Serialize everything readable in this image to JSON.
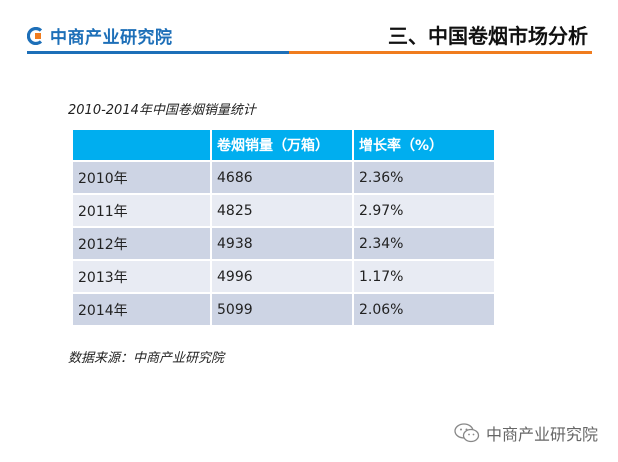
{
  "header": {
    "logo_text": "中商产业研究院",
    "section_title": "三、中国卷烟市场分析"
  },
  "caption": "2010-2014年中国卷烟销量统计",
  "table": {
    "headers": [
      "",
      "卷烟销量（万箱）",
      "增长率（%）"
    ],
    "rows": [
      {
        "year": "2010年",
        "sales": "4686",
        "growth": "2.36%"
      },
      {
        "year": "2011年",
        "sales": "4825",
        "growth": "2.97%"
      },
      {
        "year": "2012年",
        "sales": "4938",
        "growth": "2.34%"
      },
      {
        "year": "2013年",
        "sales": "4996",
        "growth": "1.17%"
      },
      {
        "year": "2014年",
        "sales": "5099",
        "growth": "2.06%"
      }
    ]
  },
  "source": "数据来源：中商产业研究院",
  "watermark": {
    "text": "中商产业研究院",
    "icon": "wechat-icon"
  },
  "colors": {
    "brand_blue": "#1d6fb8",
    "accent_orange": "#f07c1e",
    "table_header": "#00aeef",
    "row_dark": "#cdd4e4",
    "row_light": "#e8ebf3"
  }
}
